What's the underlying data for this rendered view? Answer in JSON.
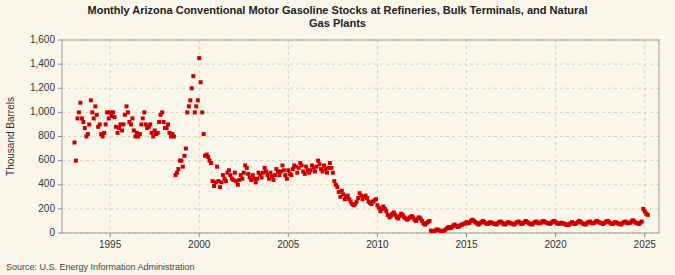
{
  "chart_data": {
    "type": "scatter",
    "title": "Monthly Arizona Conventional Motor Gasoline Stocks at Refineries, Bulk Terminals, and Natural\nGas Plants",
    "y_label": "Thousand Barrels",
    "annotations": [
      "Source: U.S. Energy Information Administration"
    ],
    "color": "#cc0000",
    "marker": "square",
    "grid": true,
    "xlim": [
      1992.3,
      2025.8
    ],
    "xticks": [
      1995,
      2000,
      2005,
      2010,
      2015,
      2020,
      2025
    ],
    "ylim": [
      0,
      1600
    ],
    "yticks": [
      0,
      200,
      400,
      600,
      800,
      {
        "value": 1000,
        "label": "1,000"
      },
      {
        "value": 1200,
        "label": "1,200"
      },
      {
        "value": 1400,
        "label": "1,400"
      },
      {
        "value": 1600,
        "label": "1,600"
      }
    ],
    "x": [
      1993.0,
      1993.08,
      1993.17,
      1993.25,
      1993.33,
      1993.42,
      1993.5,
      1993.58,
      1993.67,
      1993.75,
      1993.83,
      1993.92,
      1994.0,
      1994.08,
      1994.17,
      1994.25,
      1994.33,
      1994.42,
      1994.5,
      1994.58,
      1994.67,
      1994.75,
      1994.83,
      1994.92,
      1995.0,
      1995.08,
      1995.17,
      1995.25,
      1995.33,
      1995.42,
      1995.5,
      1995.58,
      1995.67,
      1995.75,
      1995.83,
      1995.92,
      1996.0,
      1996.08,
      1996.17,
      1996.25,
      1996.33,
      1996.42,
      1996.5,
      1996.58,
      1996.67,
      1996.75,
      1996.83,
      1996.92,
      1997.0,
      1997.08,
      1997.17,
      1997.25,
      1997.33,
      1997.42,
      1997.5,
      1997.58,
      1997.67,
      1997.75,
      1997.83,
      1997.92,
      1998.0,
      1998.08,
      1998.17,
      1998.25,
      1998.33,
      1998.42,
      1998.5,
      1998.58,
      1998.67,
      1998.75,
      1998.83,
      1998.92,
      1999.0,
      1999.08,
      1999.17,
      1999.25,
      1999.33,
      1999.42,
      1999.5,
      1999.58,
      1999.67,
      1999.75,
      1999.83,
      1999.92,
      2000.0,
      2000.08,
      2000.17,
      2000.25,
      2000.33,
      2000.42,
      2000.5,
      2000.58,
      2000.67,
      2000.75,
      2000.83,
      2000.92,
      2001.0,
      2001.08,
      2001.17,
      2001.25,
      2001.33,
      2001.42,
      2001.5,
      2001.58,
      2001.67,
      2001.75,
      2001.83,
      2001.92,
      2002.0,
      2002.08,
      2002.17,
      2002.25,
      2002.33,
      2002.42,
      2002.5,
      2002.58,
      2002.67,
      2002.75,
      2002.83,
      2002.92,
      2003.0,
      2003.08,
      2003.17,
      2003.25,
      2003.33,
      2003.42,
      2003.5,
      2003.58,
      2003.67,
      2003.75,
      2003.83,
      2003.92,
      2004.0,
      2004.08,
      2004.17,
      2004.25,
      2004.33,
      2004.42,
      2004.5,
      2004.58,
      2004.67,
      2004.75,
      2004.83,
      2004.92,
      2005.0,
      2005.08,
      2005.17,
      2005.25,
      2005.33,
      2005.42,
      2005.5,
      2005.58,
      2005.67,
      2005.75,
      2005.83,
      2005.92,
      2006.0,
      2006.08,
      2006.17,
      2006.25,
      2006.33,
      2006.42,
      2006.5,
      2006.58,
      2006.67,
      2006.75,
      2006.83,
      2006.92,
      2007.0,
      2007.08,
      2007.17,
      2007.25,
      2007.33,
      2007.42,
      2007.5,
      2007.58,
      2007.67,
      2007.75,
      2007.83,
      2007.92,
      2008.0,
      2008.08,
      2008.17,
      2008.25,
      2008.33,
      2008.42,
      2008.5,
      2008.58,
      2008.67,
      2008.75,
      2008.83,
      2008.92,
      2009.0,
      2009.08,
      2009.17,
      2009.25,
      2009.33,
      2009.42,
      2009.5,
      2009.58,
      2009.67,
      2009.75,
      2009.83,
      2009.92,
      2010.0,
      2010.08,
      2010.17,
      2010.25,
      2010.33,
      2010.42,
      2010.5,
      2010.58,
      2010.67,
      2010.75,
      2010.83,
      2010.92,
      2011.0,
      2011.08,
      2011.17,
      2011.25,
      2011.33,
      2011.42,
      2011.5,
      2011.58,
      2011.67,
      2011.75,
      2011.83,
      2011.92,
      2012.0,
      2012.08,
      2012.17,
      2012.25,
      2012.33,
      2012.42,
      2012.5,
      2012.58,
      2012.67,
      2012.75,
      2012.83,
      2012.92,
      2013.0,
      2013.08,
      2013.17,
      2013.25,
      2013.33,
      2013.42,
      2013.5,
      2013.58,
      2013.67,
      2013.75,
      2013.83,
      2013.92,
      2014.0,
      2014.08,
      2014.17,
      2014.25,
      2014.33,
      2014.42,
      2014.5,
      2014.58,
      2014.67,
      2014.75,
      2014.83,
      2014.92,
      2015.0,
      2015.08,
      2015.17,
      2015.25,
      2015.33,
      2015.42,
      2015.5,
      2015.58,
      2015.67,
      2015.75,
      2015.83,
      2015.92,
      2016.0,
      2016.08,
      2016.17,
      2016.25,
      2016.33,
      2016.42,
      2016.5,
      2016.58,
      2016.67,
      2016.75,
      2016.83,
      2016.92,
      2017.0,
      2017.08,
      2017.17,
      2017.25,
      2017.33,
      2017.42,
      2017.5,
      2017.58,
      2017.67,
      2017.75,
      2017.83,
      2017.92,
      2018.0,
      2018.08,
      2018.17,
      2018.25,
      2018.33,
      2018.42,
      2018.5,
      2018.58,
      2018.67,
      2018.75,
      2018.83,
      2018.92,
      2019.0,
      2019.08,
      2019.17,
      2019.25,
      2019.33,
      2019.42,
      2019.5,
      2019.58,
      2019.67,
      2019.75,
      2019.83,
      2019.92,
      2020.0,
      2020.08,
      2020.17,
      2020.25,
      2020.33,
      2020.42,
      2020.5,
      2020.58,
      2020.67,
      2020.75,
      2020.83,
      2020.92,
      2021.0,
      2021.08,
      2021.17,
      2021.25,
      2021.33,
      2021.42,
      2021.5,
      2021.58,
      2021.67,
      2021.75,
      2021.83,
      2021.92,
      2022.0,
      2022.08,
      2022.17,
      2022.25,
      2022.33,
      2022.42,
      2022.5,
      2022.58,
      2022.67,
      2022.75,
      2022.83,
      2022.92,
      2023.0,
      2023.08,
      2023.17,
      2023.25,
      2023.33,
      2023.42,
      2023.5,
      2023.58,
      2023.67,
      2023.75,
      2023.83,
      2023.92,
      2024.0,
      2024.08,
      2024.17,
      2024.25,
      2024.33,
      2024.42,
      2024.5,
      2024.58,
      2024.67,
      2024.75,
      2024.83,
      2024.92,
      2025.0,
      2025.08,
      2025.17
    ],
    "values": [
      750,
      600,
      950,
      1000,
      1080,
      950,
      920,
      870,
      800,
      820,
      900,
      1100,
      1000,
      950,
      1050,
      980,
      880,
      900,
      820,
      800,
      830,
      900,
      1000,
      950,
      1000,
      970,
      1000,
      960,
      880,
      830,
      870,
      900,
      850,
      900,
      980,
      1050,
      1000,
      920,
      900,
      950,
      850,
      800,
      830,
      800,
      820,
      900,
      950,
      1000,
      900,
      870,
      880,
      900,
      830,
      800,
      850,
      820,
      830,
      920,
      980,
      1000,
      920,
      870,
      870,
      900,
      830,
      800,
      820,
      800,
      480,
      500,
      530,
      600,
      600,
      550,
      640,
      700,
      1000,
      1050,
      1100,
      1200,
      1300,
      1000,
      1050,
      1100,
      1450,
      1250,
      1000,
      820,
      640,
      650,
      630,
      600,
      580,
      430,
      390,
      420,
      550,
      430,
      380,
      420,
      480,
      450,
      430,
      500,
      520,
      480,
      450,
      440,
      500,
      430,
      400,
      440,
      480,
      450,
      500,
      560,
      540,
      490,
      460,
      440,
      480,
      450,
      420,
      450,
      500,
      480,
      460,
      500,
      540,
      510,
      480,
      450,
      500,
      470,
      440,
      480,
      530,
      510,
      480,
      510,
      560,
      520,
      480,
      450,
      520,
      490,
      480,
      530,
      560,
      550,
      500,
      540,
      580,
      560,
      510,
      490,
      550,
      520,
      500,
      520,
      560,
      540,
      510,
      550,
      600,
      570,
      530,
      510,
      560,
      530,
      500,
      540,
      580,
      540,
      500,
      430,
      400,
      380,
      340,
      300,
      350,
      320,
      280,
      300,
      310,
      280,
      260,
      240,
      230,
      240,
      260,
      290,
      330,
      310,
      280,
      300,
      310,
      290,
      260,
      250,
      240,
      260,
      270,
      280,
      230,
      210,
      180,
      200,
      220,
      200,
      180,
      150,
      130,
      140,
      160,
      170,
      150,
      130,
      120,
      140,
      160,
      150,
      130,
      120,
      110,
      120,
      130,
      140,
      130,
      110,
      100,
      120,
      130,
      120,
      100,
      80,
      70,
      80,
      90,
      100,
      20,
      10,
      15,
      20,
      30,
      25,
      20,
      15,
      10,
      20,
      30,
      40,
      50,
      40,
      45,
      60,
      70,
      60,
      50,
      55,
      65,
      70,
      75,
      80,
      90,
      80,
      85,
      100,
      110,
      100,
      90,
      80,
      70,
      80,
      90,
      100,
      90,
      80,
      75,
      80,
      90,
      85,
      80,
      75,
      70,
      80,
      90,
      95,
      85,
      75,
      70,
      80,
      90,
      85,
      80,
      75,
      70,
      80,
      90,
      95,
      85,
      75,
      80,
      90,
      100,
      90,
      80,
      75,
      70,
      80,
      90,
      95,
      85,
      80,
      85,
      95,
      100,
      90,
      85,
      80,
      75,
      85,
      95,
      100,
      90,
      80,
      75,
      80,
      85,
      80,
      75,
      70,
      65,
      70,
      80,
      90,
      80,
      75,
      80,
      90,
      100,
      90,
      80,
      75,
      70,
      80,
      90,
      95,
      85,
      80,
      85,
      95,
      100,
      90,
      85,
      80,
      75,
      85,
      95,
      100,
      90,
      80,
      75,
      80,
      90,
      85,
      80,
      75,
      70,
      80,
      90,
      95,
      85,
      80,
      85,
      95,
      105,
      95,
      85,
      80,
      75,
      85,
      95,
      200,
      180,
      160,
      150
    ]
  }
}
